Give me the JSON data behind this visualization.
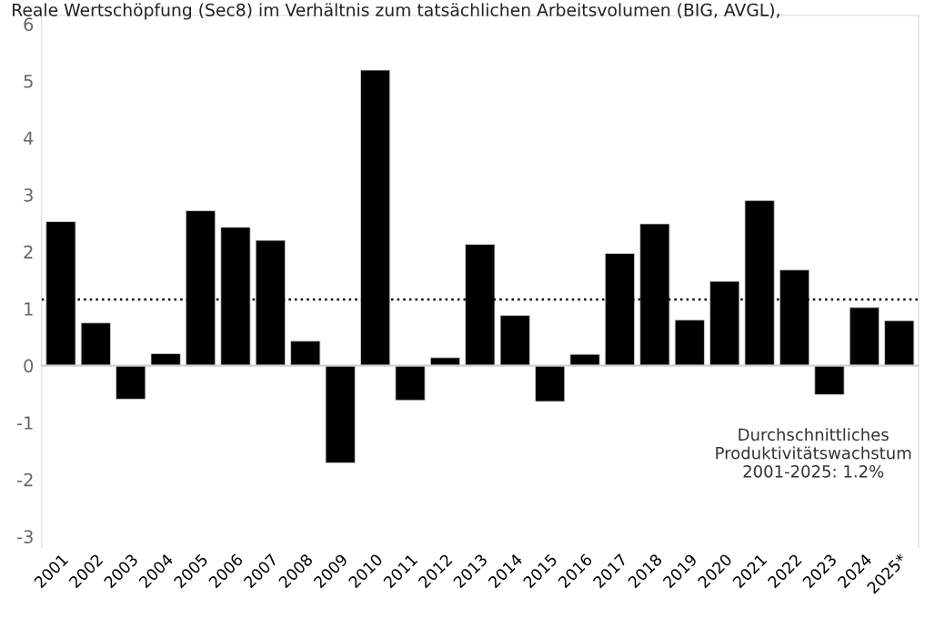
{
  "chart_data": {
    "type": "bar",
    "title": "Reale Wertschöpfung (Sec8) im Verhältnis zum tatsächlichen Arbeitsvolumen (BIG, AVGL),",
    "categories": [
      "2001",
      "2002",
      "2003",
      "2004",
      "2005",
      "2006",
      "2007",
      "2008",
      "2009",
      "2010",
      "2011",
      "2012",
      "2013",
      "2014",
      "2015",
      "2016",
      "2017",
      "2018",
      "2019",
      "2020",
      "2021",
      "2022",
      "2023",
      "2024",
      "2025*"
    ],
    "values": [
      2.53,
      0.75,
      -0.59,
      0.21,
      2.72,
      2.43,
      2.2,
      0.43,
      -1.71,
      5.19,
      -0.61,
      0.14,
      2.13,
      0.88,
      -0.63,
      0.2,
      1.97,
      2.49,
      0.8,
      1.48,
      2.9,
      1.68,
      -0.51,
      1.02,
      0.79
    ],
    "color": "#000000",
    "ylim": [
      -3.2,
      6.15
    ],
    "yticks": [
      -3,
      -2,
      -1,
      0,
      1,
      2,
      3,
      4,
      5,
      6
    ],
    "ref_lines": [
      {
        "axis": "y",
        "value": 1.16,
        "color": "#000000",
        "line_style": "dotted"
      }
    ],
    "annotations": [
      "Durchschnittliches\nProduktivitätswachstum\n2001-2025: 1.2%"
    ]
  }
}
